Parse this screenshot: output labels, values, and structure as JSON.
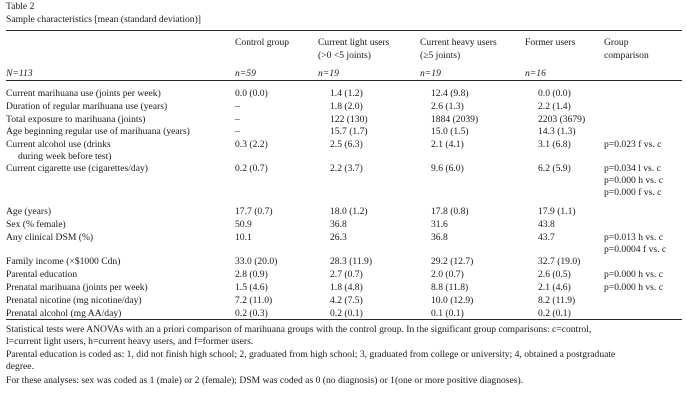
{
  "table_label": "Table 2",
  "caption": "Sample characteristics [mean (standard deviation)]",
  "columns": {
    "control": [
      "Control group"
    ],
    "light": [
      "Current light users",
      "(>0 <5 joints)"
    ],
    "heavy": [
      "Current heavy users",
      "(≥5 joints)"
    ],
    "former": [
      "Former users"
    ],
    "comparison": [
      "Group",
      "comparison"
    ]
  },
  "n_row": {
    "label": "N=113",
    "control": "n=59",
    "light": "n=19",
    "heavy": "n=19",
    "former": "n=16"
  },
  "rows": [
    {
      "label": "Current marihuana use (joints per week)",
      "control": "0.0 (0.0)",
      "light": "1.4 (1.2)",
      "heavy": "12.4 (9.8)",
      "former": "0.0 (0.0)",
      "comparison": ""
    },
    {
      "label": "Duration of regular marihuana use (years)",
      "control": "–",
      "light": "1.8 (2.0)",
      "heavy": "2.6 (1.3)",
      "former": "2.2 (1.4)",
      "comparison": ""
    },
    {
      "label": "Total exposure to marihuana (joints)",
      "control": "–",
      "light": "122 (130)",
      "heavy": "1884 (2039)",
      "former": "2203 (3679)",
      "comparison": ""
    },
    {
      "label": "Age beginning regular use of marihuana (years)",
      "control": "–",
      "light": "15.7 (1.7)",
      "heavy": "15.0 (1.5)",
      "former": "14.3 (1.3)",
      "comparison": ""
    },
    {
      "label": "Current alcohol use (drinks",
      "label2": "during week before test)",
      "control": "0.3 (2.2)",
      "light": "2.5 (6.3)",
      "heavy": "2.1 (4.1)",
      "former": "3.1 (6.8)",
      "comparison": "p=0.023 f vs. c"
    },
    {
      "label": "Current cigarette use (cigarettes/day)",
      "control": "0.2 (0.7)",
      "light": "2.2 (3.7)",
      "heavy": "9.6 (6.0)",
      "former": "6.2 (5.9)",
      "comparison": "p=0.034 l vs. c",
      "comparison2": "p=0.000 h vs. c",
      "comparison3": "p=0.000 f vs. c"
    },
    {
      "label": "Age (years)",
      "control": "17.7 (0.7)",
      "light": "18.0 (1.2)",
      "heavy": "17.8 (0.8)",
      "former": "17.9 (1.1)",
      "comparison": ""
    },
    {
      "label": "Sex (% female)",
      "control": "50.9",
      "light": "36.8",
      "heavy": "31.6",
      "former": "43.8",
      "comparison": ""
    },
    {
      "label": "Any clinical DSM (%)",
      "control": "10.1",
      "light": "26.3",
      "heavy": "36.8",
      "former": "43.7",
      "comparison": "p=0.013 h vs. c",
      "comparison2": "p=0.0004 f vs. c"
    },
    {
      "label": "Family income (×$1000 Cdn)",
      "control": "33.0 (20.0)",
      "light": "28.3 (11.9)",
      "heavy": "29.2 (12.7)",
      "former": "32.7 (19.0)",
      "comparison": ""
    },
    {
      "label": "Parental education",
      "control": "2.8 (0.9)",
      "light": "2.7 (0.7)",
      "heavy": "2.0 (0.7)",
      "former": "2.6 (0.5)",
      "comparison": "p=0.000 h vs. c"
    },
    {
      "label": "Prenatal marihuana (joints per week)",
      "control": "1.5 (4.6)",
      "light": "1.8 (4.8)",
      "heavy": "8.8 (11.8)",
      "former": "2.1 (4.6)",
      "comparison": "p=0.000 h vs. c"
    },
    {
      "label": "Prenatal nicotine (mg nicotine/day)",
      "control": "7.2 (11.0)",
      "light": "4.2 (7.5)",
      "heavy": "10.0 (12.9)",
      "former": "8.2 (11.9)",
      "comparison": ""
    },
    {
      "label": "Prenatal alcohol (mg AA/day)",
      "control": "0.2 (0.3)",
      "light": "0.2 (0.1)",
      "heavy": "0.1 (0.1)",
      "former": "0.2 (0.1)",
      "comparison": ""
    }
  ],
  "notes": {
    "note1_line1": "Statistical tests were ANOVAs with an a priori comparison of marihuana groups with the control group. In the significant group comparisons: c=control,",
    "note1_line2": "l=current light users, h=current heavy users, and f=former users.",
    "note2_line1": "Parental education is coded as: 1, did not finish high school; 2, graduated from high school; 3, graduated from college or university; 4, obtained a postgraduate",
    "note2_line2": "degree.",
    "note3": "For these analyses: sex was coded as 1 (male) or 2 (female); DSM was coded as 0 (no diagnosis) or 1(one or more positive diagnoses)."
  }
}
